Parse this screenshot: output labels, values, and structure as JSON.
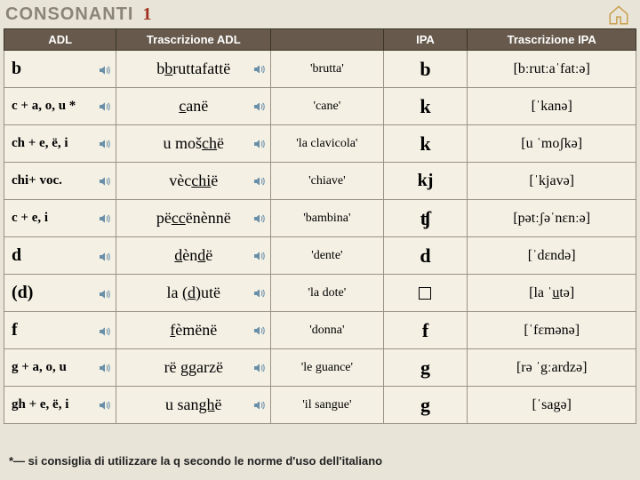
{
  "page": {
    "title": "CONSONANTI",
    "title_num": "1",
    "footnote": "*— si consiglia di utilizzare la q secondo le norme d'uso dell'italiano"
  },
  "headers": {
    "adl": "ADL",
    "tr": "Trascrizione ADL",
    "gl": "",
    "ipa": "IPA",
    "tripa": "Trascrizione IPA"
  },
  "rows": [
    {
      "adl_html": "b",
      "adl_size": "lg",
      "tr_html": "b<span class='uline'>b</span>ruttafattë",
      "gloss": "'brutta'",
      "ipa_html": "b",
      "tripa": "[bːrutːaˈfatːə]"
    },
    {
      "adl_html": "c + a, o, u *",
      "adl_size": "sm",
      "tr_html": "<span class='uline'>c</span>anë",
      "gloss": "'cane'",
      "ipa_html": "k",
      "tripa": "[ˈkanə]"
    },
    {
      "adl_html": "ch + e, ë, i",
      "adl_size": "sm",
      "tr_html": "u moš<span class='uline'>ch</span>ë",
      "gloss": "'la clavicola'",
      "ipa_html": "k",
      "tripa": "[u ˈmoʃkə]"
    },
    {
      "adl_html": "chi+ voc.",
      "adl_size": "sm",
      "tr_html": "vèc<span class='uline'>chi</span>ë",
      "gloss": "'chiave'",
      "ipa_html": "kj",
      "tripa": "[ˈkjavə]"
    },
    {
      "adl_html": "c + e, i",
      "adl_size": "sm",
      "tr_html": "pë<span class='uline'>cc</span>ënènnë",
      "gloss": "'bambina'",
      "ipa_html": "ʧ",
      "tripa": "[pətːʃəˈnɛnːə]"
    },
    {
      "adl_html": "d",
      "adl_size": "lg",
      "tr_html": "<span class='uline'>d</span>èn<span class='uline'>d</span>ë",
      "gloss": "'dente'",
      "ipa_html": "d",
      "tripa": "[ˈdɛndə]"
    },
    {
      "adl_html": "(d)",
      "adl_size": "lg",
      "tr_html": "la <span class='uline'>(d)</span>utë",
      "gloss": "'la dote'",
      "ipa_html": "<span class='box-char'></span>",
      "tripa": "[la ˈ<span style='text-decoration:underline'>u</span>tə]"
    },
    {
      "adl_html": "f",
      "adl_size": "lg",
      "tr_html": "<span class='uline'>f</span>èmënë",
      "gloss": "'donna'",
      "ipa_html": "f",
      "tripa": "[ˈfɛmənə]"
    },
    {
      "adl_html": "g + a, o, u",
      "adl_size": "sm",
      "tr_html": "rë <span class='uline'>gg</span>arzë",
      "gloss": "'le guance'",
      "ipa_html": "g",
      "tripa": "[rə ˈgːardzə]"
    },
    {
      "adl_html": "gh + e, ë, i",
      "adl_size": "sm",
      "tr_html": "u san<span class='uline'>gh</span>ë",
      "gloss": "'il sangue'",
      "ipa_html": "g",
      "tripa": "[ˈsa<span style='text-decoration:underline'>g</span>ə]"
    }
  ]
}
